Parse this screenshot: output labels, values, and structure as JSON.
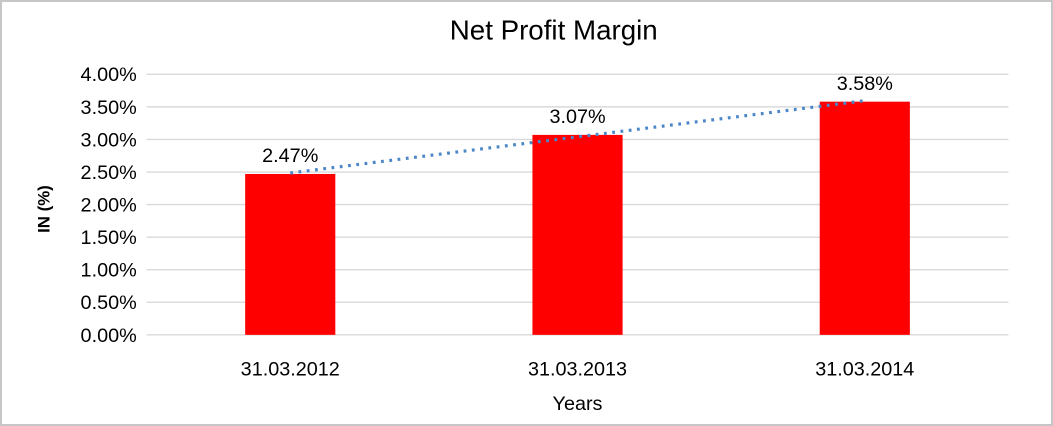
{
  "frame": {
    "border_color": "#c6c6c6",
    "background": "#ffffff"
  },
  "chart_data": {
    "type": "bar",
    "title": "Net Profit Margin",
    "categories": [
      "31.03.2012",
      "31.03.2013",
      "31.03.2014"
    ],
    "series": [
      {
        "name": "Net Profit Margin",
        "values": [
          2.47,
          3.07,
          3.58
        ]
      }
    ],
    "data_labels": [
      "2.47%",
      "3.07%",
      "3.58%"
    ],
    "xlabel": "Years",
    "ylabel": "IN (%)",
    "ylim": [
      0,
      4
    ],
    "ytick_step": 0.5,
    "ytick_labels": [
      "0.00%",
      "0.50%",
      "1.00%",
      "1.50%",
      "2.00%",
      "2.50%",
      "3.00%",
      "3.50%",
      "4.00%"
    ],
    "grid": true,
    "legend": false,
    "trendline": {
      "type": "linear",
      "style": "dotted"
    },
    "colors": {
      "bar": "#ff0000",
      "trendline": "#4a86c8",
      "gridline": "#d9d9d9",
      "text": "#000000"
    }
  }
}
